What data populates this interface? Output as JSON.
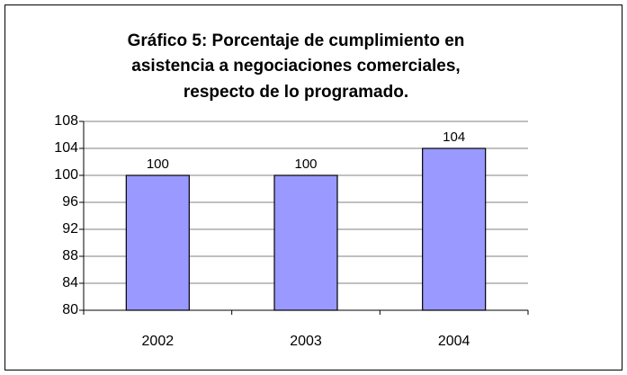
{
  "chart_data": {
    "type": "bar",
    "title": [
      "Gráfico 5: Porcentaje de cumplimiento en",
      "asistencia a negociaciones comerciales,",
      "respecto de lo programado."
    ],
    "categories": [
      "2002",
      "2003",
      "2004"
    ],
    "values": [
      100,
      100,
      104
    ],
    "color": "#9999ff",
    "ylim": [
      80,
      108
    ],
    "yticks": [
      80,
      84,
      88,
      92,
      96,
      100,
      104,
      108
    ],
    "grid": true
  }
}
